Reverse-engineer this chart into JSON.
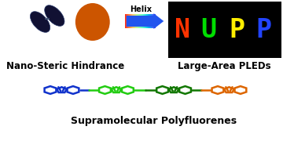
{
  "bg_color": "#ffffff",
  "nano_steric_label": "Nano-Steric Hindrance",
  "large_area_label": "Large-Area PLEDs",
  "supramolecular_label": "Supramolecular Polyfluorenes",
  "helix_label": "Helix",
  "nupp_bg": "#000000",
  "nupp_N_color": "#ff3300",
  "nupp_U_color": "#00dd00",
  "nupp_P1_color": "#ffee00",
  "nupp_P2_color": "#2244ff",
  "arrow_color": "#2255ee",
  "poly_color1": "#1133cc",
  "poly_color2": "#22cc11",
  "poly_color3": "#117700",
  "poly_color4": "#dd6600",
  "label_fontsize": 8.5,
  "label_fontweight": "bold"
}
